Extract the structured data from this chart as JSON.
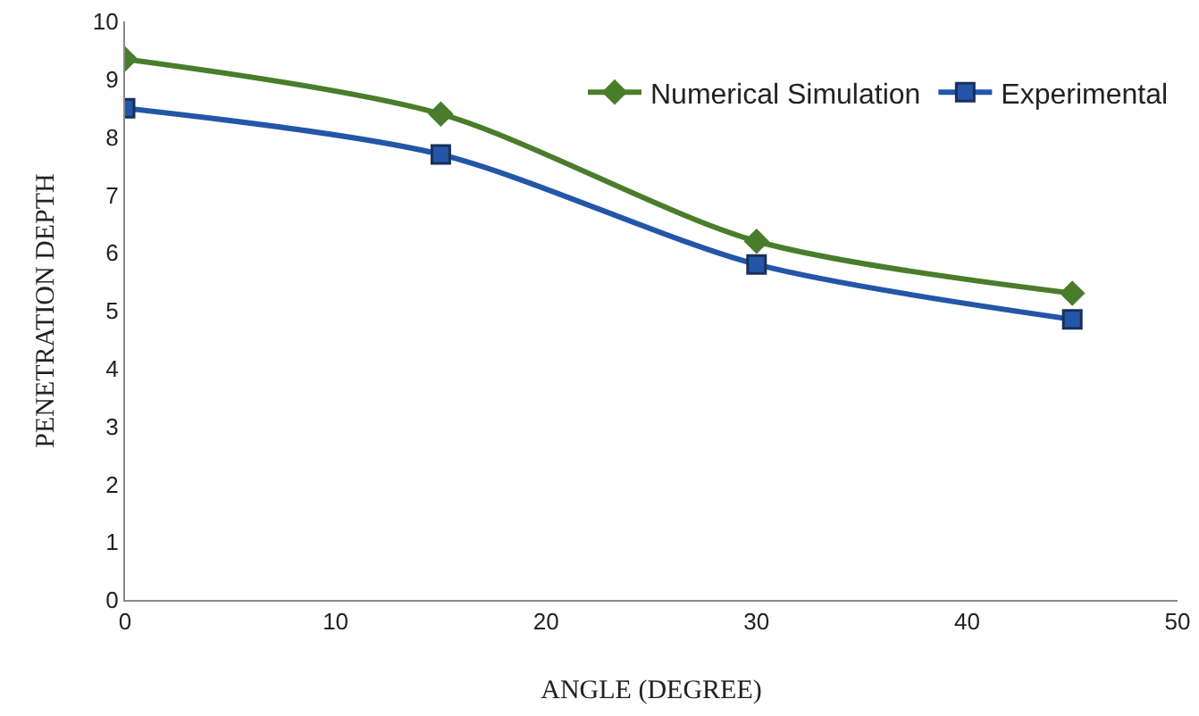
{
  "chart_data": {
    "type": "line",
    "xlabel": "ANGLE (DEGREE)",
    "ylabel": "PENETRATION DEPTH",
    "x": [
      0,
      15,
      30,
      45
    ],
    "series": [
      {
        "name": "Numerical Simulation",
        "color": "#4a7d2b",
        "values": [
          9.35,
          8.4,
          6.2,
          5.3
        ],
        "marker": "diamond"
      },
      {
        "name": "Experimental",
        "color": "#2356a8",
        "values": [
          8.5,
          7.7,
          5.8,
          4.85
        ],
        "marker": "square"
      }
    ],
    "xlim": [
      0,
      50
    ],
    "xticks": [
      0,
      10,
      20,
      30,
      40,
      50
    ],
    "ylim": [
      0,
      10
    ],
    "yticks": [
      0,
      1,
      2,
      3,
      4,
      5,
      6,
      7,
      8,
      9,
      10
    ],
    "grid": false,
    "legend": "top right",
    "line_style": "solid"
  }
}
